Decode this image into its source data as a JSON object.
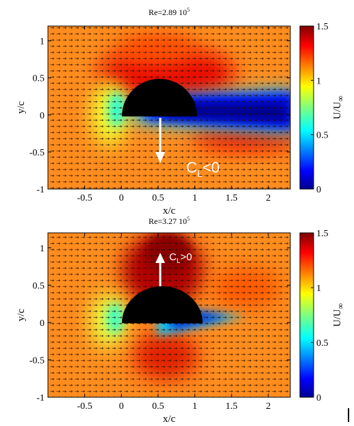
{
  "chart_data": [
    {
      "type": "heatmap",
      "title": "Re=2.89 10",
      "title_exp": "5",
      "xlabel": "x/c",
      "ylabel": "y/c",
      "xlim": [
        -1,
        2.3
      ],
      "ylim": [
        -1,
        1.2
      ],
      "xticks": [
        "-0.5",
        "0",
        "0.5",
        "1",
        "1.5",
        "2"
      ],
      "yticks": [
        "1",
        "0.5",
        "0",
        "-0.5",
        "-1"
      ],
      "colorbar": {
        "label": "U/U",
        "label_sub": "∞",
        "range": [
          0,
          1.5
        ],
        "ticks": [
          "1.5",
          "1",
          "0.5",
          "0"
        ],
        "colormap": "jet"
      },
      "overlay": "velocity vectors",
      "body": "half-cylinder (semicircle), x from 0 to 1, flat side facing down",
      "annotation": {
        "text": "C",
        "sub": "L",
        "rel": "<0",
        "arrow": "down"
      }
    },
    {
      "type": "heatmap",
      "title": "Re=3.27 10",
      "title_exp": "5",
      "xlabel": "x/c",
      "ylabel": "y/c",
      "xlim": [
        -1,
        2.3
      ],
      "ylim": [
        -1,
        1.2
      ],
      "xticks": [
        "-0.5",
        "0",
        "0.5",
        "1",
        "1.5",
        "2"
      ],
      "yticks": [
        "1",
        "0.5",
        "0",
        "-0.5",
        "-1"
      ],
      "colorbar": {
        "label": "U/U",
        "label_sub": "∞",
        "range": [
          0,
          1.5
        ],
        "ticks": [
          "1.5",
          "1",
          "0.5",
          "0"
        ],
        "colormap": "jet"
      },
      "overlay": "velocity vectors",
      "body": "half-cylinder (semicircle), x from 0 to 1, flat side facing down",
      "annotation": {
        "text": "C",
        "sub": "L",
        "rel": ">0",
        "arrow": "up"
      }
    }
  ]
}
